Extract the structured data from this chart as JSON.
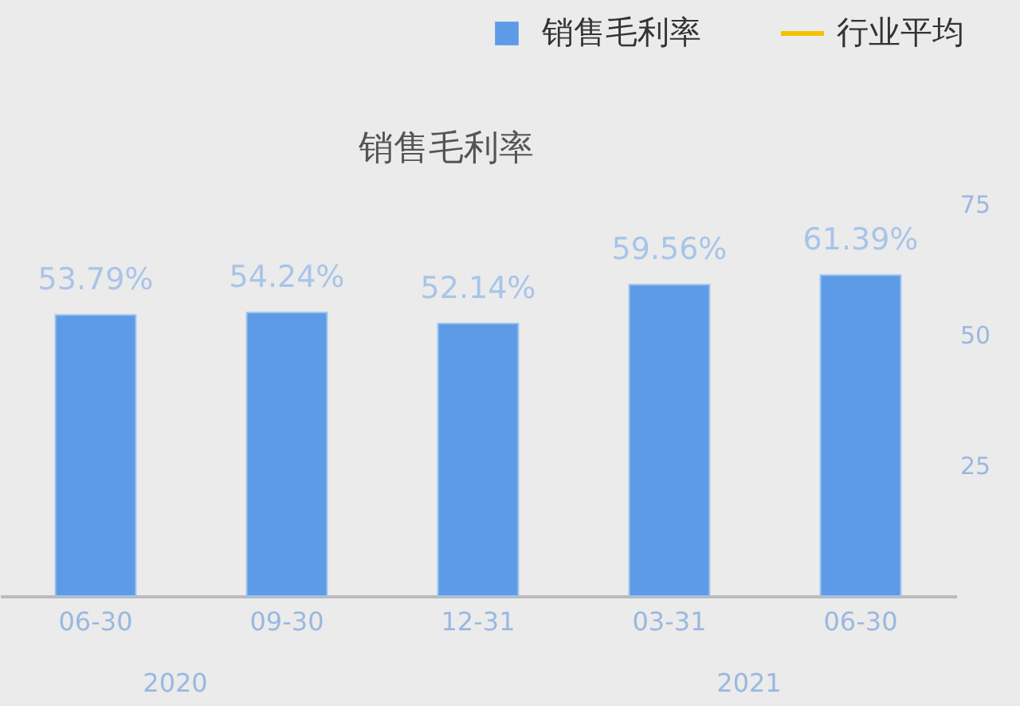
{
  "chart_data": {
    "type": "bar",
    "title": "销售毛利率",
    "categories": [
      "06-30",
      "09-30",
      "12-31",
      "03-31",
      "06-30"
    ],
    "series": [
      {
        "name": "销售毛利率",
        "color": "#5e9be6",
        "values": [
          53.79,
          54.24,
          52.14,
          59.56,
          61.39
        ],
        "value_labels": [
          "53.79%",
          "54.24%",
          "52.14%",
          "59.56%",
          "61.39%"
        ]
      },
      {
        "name": "行业平均",
        "color": "#f2c200",
        "type": "line",
        "values": [
          null,
          null,
          null,
          null,
          null
        ]
      }
    ],
    "ylim": [
      0,
      75
    ],
    "yticks": [
      25,
      50,
      75
    ],
    "legend": "top right",
    "annotations": [
      "2020",
      "2021"
    ]
  }
}
